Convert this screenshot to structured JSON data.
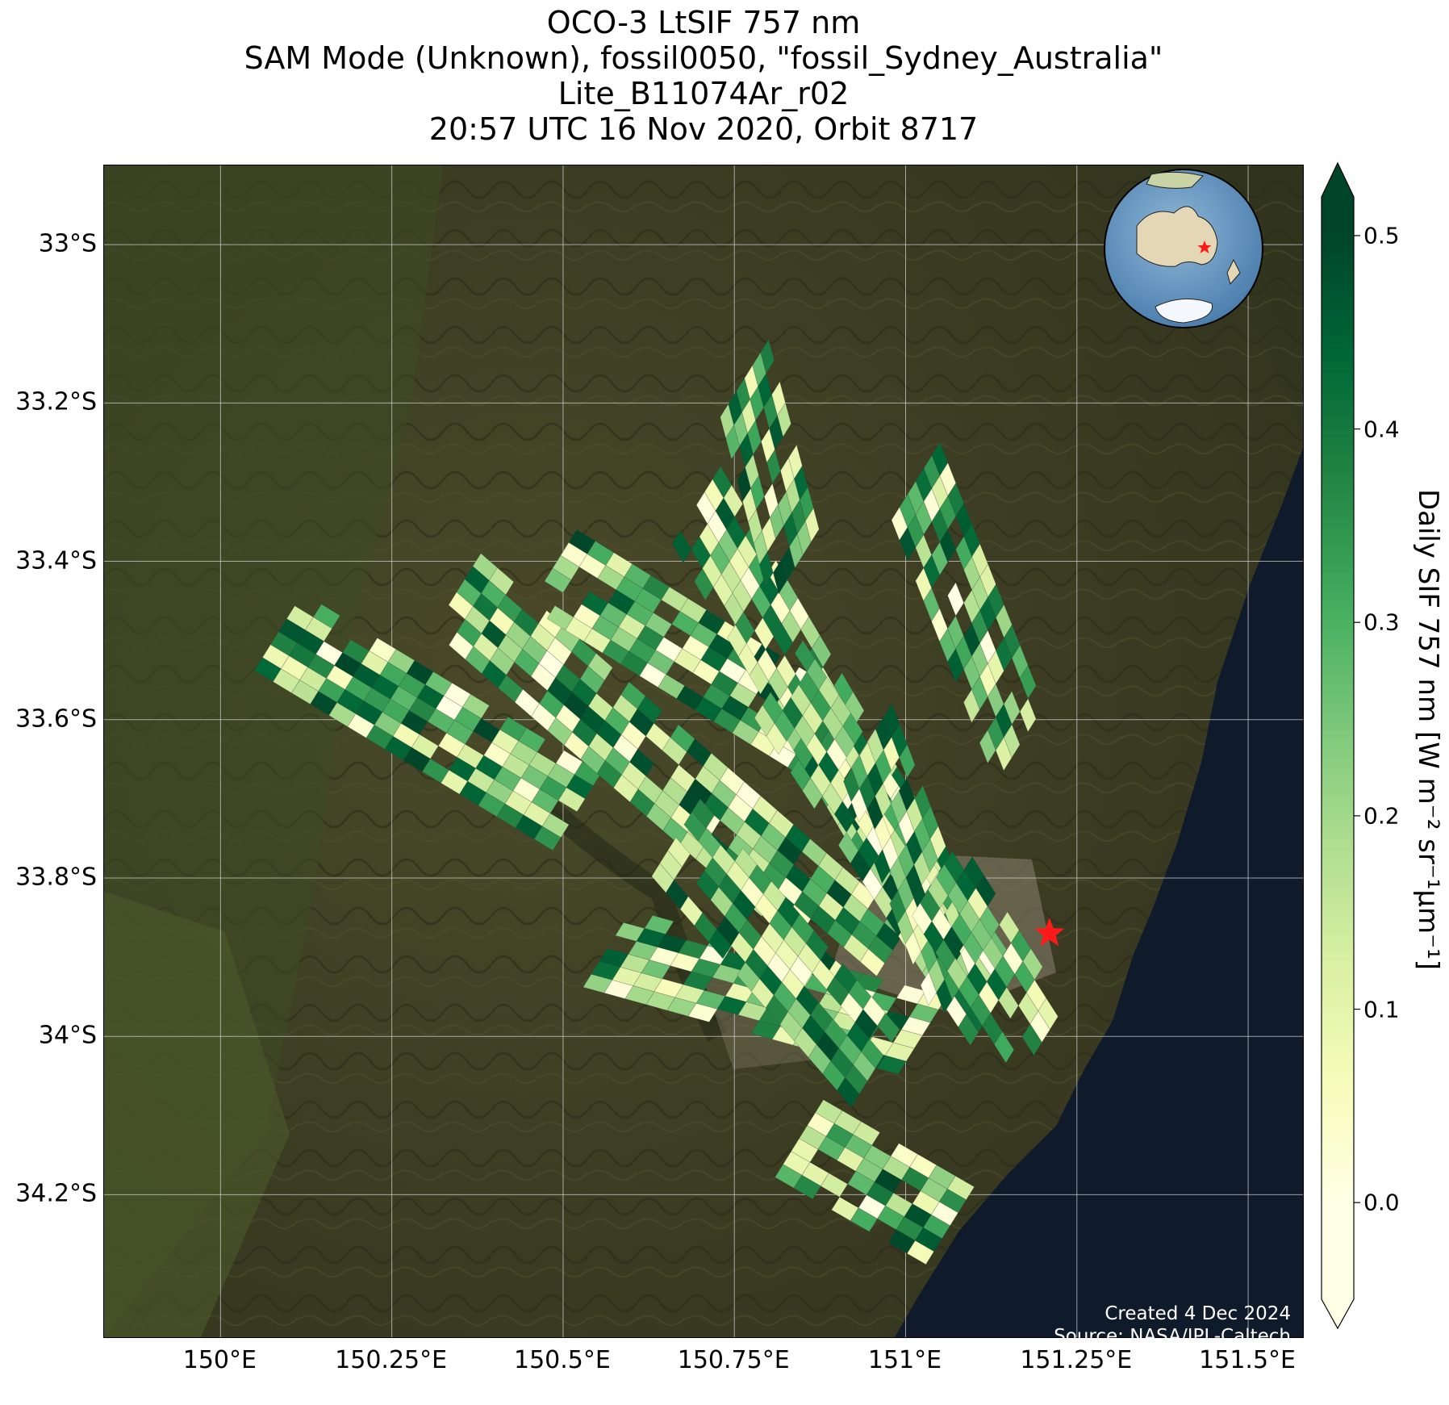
{
  "title": {
    "line1": "OCO-3 LtSIF 757 nm",
    "line2": "SAM Mode (Unknown), fossil0050, \"fossil_Sydney_Australia\"",
    "line3": "Lite_B11074Ar_r02",
    "line4": "20:57 UTC 16 Nov 2020, Orbit 8717"
  },
  "map": {
    "lon_range": [
      149.83,
      151.58
    ],
    "lat_range": [
      -34.38,
      -32.9
    ],
    "lat_ticks": [
      {
        "value": -33.0,
        "label": "33°S"
      },
      {
        "value": -33.2,
        "label": "33.2°S"
      },
      {
        "value": -33.4,
        "label": "33.4°S"
      },
      {
        "value": -33.6,
        "label": "33.6°S"
      },
      {
        "value": -33.8,
        "label": "33.8°S"
      },
      {
        "value": -34.0,
        "label": "34°S"
      },
      {
        "value": -34.2,
        "label": "34.2°S"
      }
    ],
    "lon_ticks": [
      {
        "value": 150.0,
        "label": "150°E"
      },
      {
        "value": 150.25,
        "label": "150.25°E"
      },
      {
        "value": 150.5,
        "label": "150.5°E"
      },
      {
        "value": 150.75,
        "label": "150.75°E"
      },
      {
        "value": 151.0,
        "label": "151°E"
      },
      {
        "value": 151.25,
        "label": "151.25°E"
      },
      {
        "value": 151.5,
        "label": "151.5°E"
      }
    ],
    "target": {
      "name": "fossil_Sydney_Australia",
      "lon": 151.21,
      "lat": -33.87,
      "marker": "red-star"
    },
    "inset": "globe-locator"
  },
  "colorbar": {
    "label": "Daily SIF 757 nm [W m⁻² sr⁻¹μm⁻¹]",
    "range": [
      -0.05,
      0.52
    ],
    "ticks": [
      {
        "value": 0.0,
        "label": "0.0"
      },
      {
        "value": 0.1,
        "label": "0.1"
      },
      {
        "value": 0.2,
        "label": "0.2"
      },
      {
        "value": 0.3,
        "label": "0.3"
      },
      {
        "value": 0.4,
        "label": "0.4"
      },
      {
        "value": 0.5,
        "label": "0.5"
      }
    ],
    "colormap": "YlGn",
    "colors": [
      "#ffffe5",
      "#f7fcb9",
      "#d9f0a3",
      "#addd8e",
      "#78c679",
      "#41ab5d",
      "#238443",
      "#006837",
      "#004529"
    ]
  },
  "credit": {
    "created": "Created 4 Dec 2024",
    "source": "Source: NASA/JPL-Caltech"
  },
  "chart_data": {
    "type": "heatmap",
    "colormap": "YlGn",
    "swaths": [
      {
        "from": [
          150.12,
          -33.44
        ],
        "to": [
          150.58,
          -33.68
        ],
        "value_range": [
          0.0,
          0.5
        ]
      },
      {
        "from": [
          150.38,
          -33.39
        ],
        "to": [
          151.02,
          -33.87
        ],
        "value_range": [
          0.0,
          0.5
        ]
      },
      {
        "from": [
          150.52,
          -33.36
        ],
        "to": [
          150.95,
          -33.59
        ],
        "value_range": [
          0.0,
          0.5
        ]
      },
      {
        "from": [
          150.6,
          -33.84
        ],
        "to": [
          151.06,
          -33.95
        ],
        "value_range": [
          0.0,
          0.5
        ]
      },
      {
        "from": [
          150.7,
          -33.7
        ],
        "to": [
          151.0,
          -34.0
        ],
        "value_range": [
          0.0,
          0.5
        ]
      },
      {
        "from": [
          150.73,
          -33.28
        ],
        "to": [
          151.11,
          -33.84
        ],
        "value_range": [
          0.0,
          0.5
        ]
      },
      {
        "from": [
          150.8,
          -33.12
        ],
        "to": [
          150.88,
          -33.38
        ],
        "value_range": [
          0.0,
          0.5
        ]
      },
      {
        "from": [
          150.85,
          -33.5
        ],
        "to": [
          151.17,
          -33.92
        ],
        "value_range": [
          0.0,
          0.5
        ]
      },
      {
        "from": [
          150.98,
          -33.58
        ],
        "to": [
          151.12,
          -33.9
        ],
        "value_range": [
          0.0,
          0.5
        ]
      },
      {
        "from": [
          151.05,
          -33.25
        ],
        "to": [
          151.21,
          -33.6
        ],
        "value_range": [
          0.0,
          0.5
        ]
      },
      {
        "from": [
          150.88,
          -34.08
        ],
        "to": [
          151.12,
          -34.2
        ],
        "value_range": [
          0.0,
          0.5
        ]
      },
      {
        "from": [
          151.08,
          -33.75
        ],
        "to": [
          151.25,
          -33.98
        ],
        "value_range": [
          0.0,
          0.5
        ]
      }
    ]
  }
}
